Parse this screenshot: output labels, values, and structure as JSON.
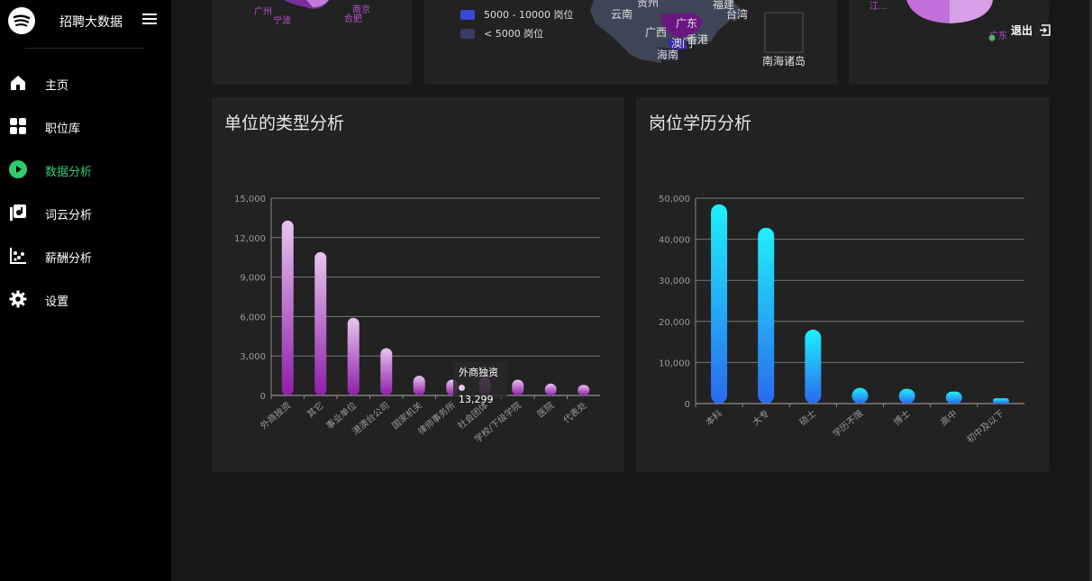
{
  "brand": {
    "title": "招聘大数据",
    "logo_icon": "spotify-logo-icon",
    "menu_icon": "hamburger-menu-icon"
  },
  "nav": {
    "items": [
      {
        "label": "主页",
        "icon": "home-icon",
        "active": false
      },
      {
        "label": "职位库",
        "icon": "grid-icon",
        "active": false
      },
      {
        "label": "数据分析",
        "icon": "play-icon",
        "active": true
      },
      {
        "label": "词云分析",
        "icon": "library-icon",
        "active": false
      },
      {
        "label": "薪酬分析",
        "icon": "scatter-chart-icon",
        "active": false
      },
      {
        "label": "设置",
        "icon": "gear-icon",
        "active": false
      }
    ]
  },
  "colors": {
    "accent": "#2ecc71",
    "purple": "#9b30b0",
    "cyan": "#1fe0f5",
    "blue": "#2a6af0"
  },
  "top_left": {
    "labels": [
      "广州",
      "宁波",
      "南京",
      "合肥"
    ]
  },
  "top_mid": {
    "legend": [
      {
        "label": "5000 - 10000 岗位",
        "color": "#3a48d8"
      },
      {
        "label": "< 5000 岗位",
        "color": "#3a3a6a"
      }
    ],
    "map_labels": [
      "贵州",
      "福建",
      "云南",
      "台湾",
      "广东",
      "广西",
      "澳门",
      "香港",
      "海南",
      "南海诸岛"
    ]
  },
  "top_right": {
    "labels": [
      "江...",
      "广东"
    ]
  },
  "header": {
    "exit_label": "退出",
    "exit_icon": "logout-icon"
  },
  "chart_left": {
    "title": "单位的类型分析",
    "tooltip": {
      "name": "外商独资",
      "value": "13,299"
    }
  },
  "chart_right": {
    "title": "岗位学历分析"
  },
  "chart_data": [
    {
      "type": "bar",
      "title": "单位的类型分析",
      "categories": [
        "外商独资",
        "其它",
        "事业单位",
        "港澳台公司",
        "国家机关",
        "律师事务所",
        "社会团体",
        "学校/下级学院",
        "医院",
        "代表处"
      ],
      "values": [
        13299,
        10900,
        5900,
        3600,
        1500,
        1200,
        1400,
        1200,
        900,
        800
      ],
      "ylim": [
        0,
        15000
      ],
      "yticks": [
        "0",
        "3,000",
        "6,000",
        "9,000",
        "12,000",
        "15,000"
      ],
      "grid": true
    },
    {
      "type": "bar",
      "title": "岗位学历分析",
      "categories": [
        "本科",
        "大专",
        "硕士",
        "学历不限",
        "博士",
        "高中",
        "初中及以下"
      ],
      "values": [
        48500,
        42800,
        18000,
        3800,
        3600,
        2900,
        1300
      ],
      "ylim": [
        0,
        50000
      ],
      "yticks": [
        "0",
        "10,000",
        "20,000",
        "30,000",
        "40,000",
        "50,000"
      ],
      "grid": true
    }
  ]
}
